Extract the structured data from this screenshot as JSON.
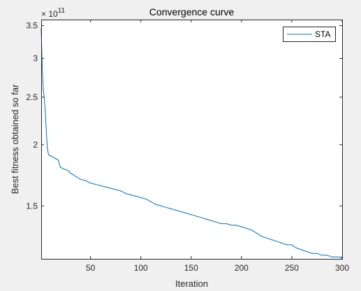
{
  "chart_data": {
    "type": "line",
    "title": "Convergence curve",
    "xlabel": "Iteration",
    "ylabel": "Best fitness obtained so far",
    "y_exponent_base": "10",
    "y_exponent": "11",
    "xlim": [
      1,
      300
    ],
    "ylim": [
      1.17,
      3.6
    ],
    "y_scale": "log",
    "grid": false,
    "legend_location": "top-right",
    "x_ticks": [
      50,
      100,
      150,
      200,
      250,
      300
    ],
    "x_tick_labels": [
      "50",
      "100",
      "150",
      "200",
      "250",
      "300"
    ],
    "y_ticks": [
      1.5,
      2,
      2.5,
      3,
      3.5
    ],
    "y_tick_labels": [
      "1.5",
      "2",
      "2.5",
      "3",
      "3.5"
    ],
    "series": [
      {
        "name": "STA",
        "color": "#0072bd",
        "x": [
          1,
          2,
          3,
          4,
          5,
          6,
          7,
          8,
          9,
          10,
          12,
          14,
          16,
          18,
          20,
          22,
          25,
          28,
          30,
          32,
          36,
          40,
          45,
          50,
          55,
          60,
          65,
          70,
          75,
          80,
          85,
          90,
          95,
          100,
          105,
          110,
          115,
          120,
          125,
          130,
          135,
          140,
          145,
          150,
          155,
          160,
          165,
          170,
          175,
          180,
          185,
          190,
          195,
          200,
          205,
          210,
          215,
          220,
          225,
          230,
          235,
          240,
          245,
          250,
          252,
          255,
          260,
          265,
          270,
          275,
          280,
          285,
          290,
          295,
          298,
          300
        ],
        "y": [
          3.45,
          2.9,
          2.6,
          2.5,
          2.35,
          2.15,
          1.98,
          1.92,
          1.9,
          1.9,
          1.89,
          1.88,
          1.87,
          1.86,
          1.8,
          1.79,
          1.78,
          1.77,
          1.75,
          1.74,
          1.72,
          1.7,
          1.69,
          1.67,
          1.66,
          1.65,
          1.64,
          1.63,
          1.62,
          1.61,
          1.59,
          1.58,
          1.57,
          1.56,
          1.55,
          1.53,
          1.51,
          1.5,
          1.49,
          1.48,
          1.47,
          1.46,
          1.45,
          1.44,
          1.43,
          1.42,
          1.41,
          1.4,
          1.39,
          1.38,
          1.38,
          1.37,
          1.37,
          1.36,
          1.35,
          1.34,
          1.32,
          1.3,
          1.29,
          1.28,
          1.27,
          1.26,
          1.25,
          1.25,
          1.24,
          1.23,
          1.22,
          1.21,
          1.2,
          1.2,
          1.19,
          1.19,
          1.18,
          1.18,
          1.18,
          1.17
        ]
      }
    ]
  }
}
